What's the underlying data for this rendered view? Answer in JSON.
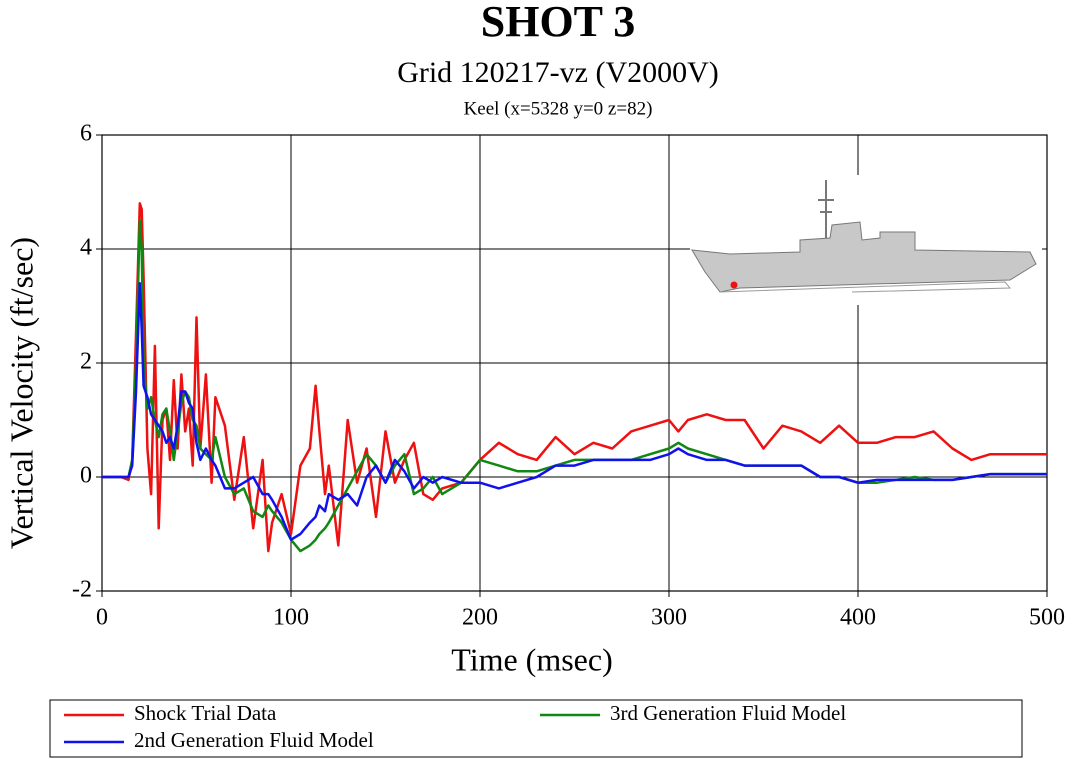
{
  "chart_data": {
    "type": "line",
    "title": "SHOT 3",
    "subtitle": "Grid 120217-vz (V2000V)",
    "caption": "Keel (x=5328 y=0 z=82)",
    "xlabel": "Time (msec)",
    "ylabel": "Vertical Velocity (ft/sec)",
    "xlim": [
      0,
      500
    ],
    "ylim": [
      -2,
      6
    ],
    "xticks": [
      0,
      100,
      200,
      300,
      400,
      500
    ],
    "yticks": [
      -2,
      0,
      2,
      4,
      6
    ],
    "grid": true,
    "legend": "bottom",
    "x": [
      0,
      5,
      10,
      14,
      16,
      18,
      20,
      21,
      22,
      24,
      26,
      28,
      30,
      32,
      34,
      36,
      38,
      40,
      42,
      44,
      46,
      48,
      50,
      52,
      55,
      58,
      60,
      65,
      70,
      75,
      80,
      85,
      88,
      90,
      95,
      100,
      105,
      110,
      113,
      115,
      118,
      120,
      125,
      130,
      135,
      140,
      145,
      150,
      155,
      160,
      165,
      170,
      175,
      180,
      190,
      200,
      210,
      220,
      230,
      240,
      250,
      260,
      270,
      280,
      290,
      300,
      305,
      310,
      320,
      330,
      340,
      350,
      360,
      370,
      380,
      390,
      400,
      410,
      420,
      430,
      440,
      450,
      460,
      470,
      480,
      490,
      500
    ],
    "series": [
      {
        "name": "Shock Trial Data",
        "color": "#ee1111",
        "values": [
          0,
          0,
          0,
          -0.05,
          0.3,
          2.5,
          4.8,
          4.7,
          3.5,
          0.5,
          -0.3,
          2.3,
          -0.9,
          1.0,
          1.2,
          0.3,
          1.7,
          0.5,
          1.8,
          0.8,
          1.2,
          0.2,
          2.8,
          0.5,
          1.8,
          -0.1,
          1.4,
          0.9,
          -0.4,
          0.7,
          -0.9,
          0.3,
          -1.3,
          -0.8,
          -0.3,
          -1.0,
          0.2,
          0.5,
          1.6,
          0.8,
          -0.3,
          0.2,
          -1.2,
          1.0,
          -0.1,
          0.5,
          -0.7,
          0.8,
          -0.1,
          0.3,
          0.6,
          -0.3,
          -0.4,
          -0.2,
          -0.1,
          0.3,
          0.6,
          0.4,
          0.3,
          0.7,
          0.4,
          0.6,
          0.5,
          0.8,
          0.9,
          1.0,
          0.8,
          1.0,
          1.1,
          1.0,
          1.0,
          0.5,
          0.9,
          0.8,
          0.6,
          0.9,
          0.6,
          0.6,
          0.7,
          0.7,
          0.8,
          0.5,
          0.3,
          0.4,
          0.4,
          0.4,
          0.4
        ]
      },
      {
        "name": "3rd Generation Fluid Model",
        "color": "#118811",
        "values": [
          0,
          0,
          0,
          0,
          0.3,
          2.0,
          4.5,
          4.0,
          2.0,
          1.2,
          1.4,
          1.0,
          0.7,
          1.1,
          1.2,
          0.8,
          0.3,
          0.8,
          1.3,
          1.5,
          1.4,
          1.0,
          0.9,
          0.5,
          0.4,
          0.3,
          0.7,
          0.0,
          -0.3,
          -0.2,
          -0.6,
          -0.7,
          -0.5,
          -0.6,
          -0.8,
          -1.1,
          -1.3,
          -1.2,
          -1.1,
          -1.0,
          -0.9,
          -0.8,
          -0.5,
          -0.2,
          0.1,
          0.4,
          0.2,
          -0.1,
          0.2,
          0.4,
          -0.3,
          -0.2,
          0.0,
          -0.3,
          -0.1,
          0.3,
          0.2,
          0.1,
          0.1,
          0.2,
          0.3,
          0.3,
          0.3,
          0.3,
          0.4,
          0.5,
          0.6,
          0.5,
          0.4,
          0.3,
          0.2,
          0.2,
          0.2,
          0.2,
          0.0,
          0.0,
          -0.1,
          -0.1,
          -0.05,
          0.0,
          -0.05,
          -0.05,
          0.0,
          0.05,
          0.05,
          0.05,
          0.05
        ]
      },
      {
        "name": "2nd Generation Fluid Model",
        "color": "#1111ee",
        "values": [
          0,
          0,
          0,
          0,
          0.2,
          1.5,
          3.4,
          2.6,
          1.6,
          1.4,
          1.1,
          1.0,
          0.9,
          0.8,
          0.6,
          0.7,
          0.5,
          0.9,
          1.5,
          1.5,
          1.3,
          1.2,
          0.6,
          0.3,
          0.5,
          0.3,
          0.2,
          -0.2,
          -0.2,
          -0.1,
          0.0,
          -0.3,
          -0.3,
          -0.4,
          -0.7,
          -1.1,
          -1.0,
          -0.8,
          -0.7,
          -0.5,
          -0.6,
          -0.3,
          -0.4,
          -0.3,
          -0.5,
          0.0,
          0.2,
          -0.1,
          0.3,
          0.1,
          -0.2,
          0.0,
          -0.1,
          0.0,
          -0.1,
          -0.1,
          -0.2,
          -0.1,
          0.0,
          0.2,
          0.2,
          0.3,
          0.3,
          0.3,
          0.3,
          0.4,
          0.5,
          0.4,
          0.3,
          0.3,
          0.2,
          0.2,
          0.2,
          0.2,
          0.0,
          0.0,
          -0.1,
          -0.05,
          -0.05,
          -0.05,
          -0.05,
          -0.05,
          0.0,
          0.05,
          0.05,
          0.05,
          0.05
        ]
      }
    ]
  }
}
